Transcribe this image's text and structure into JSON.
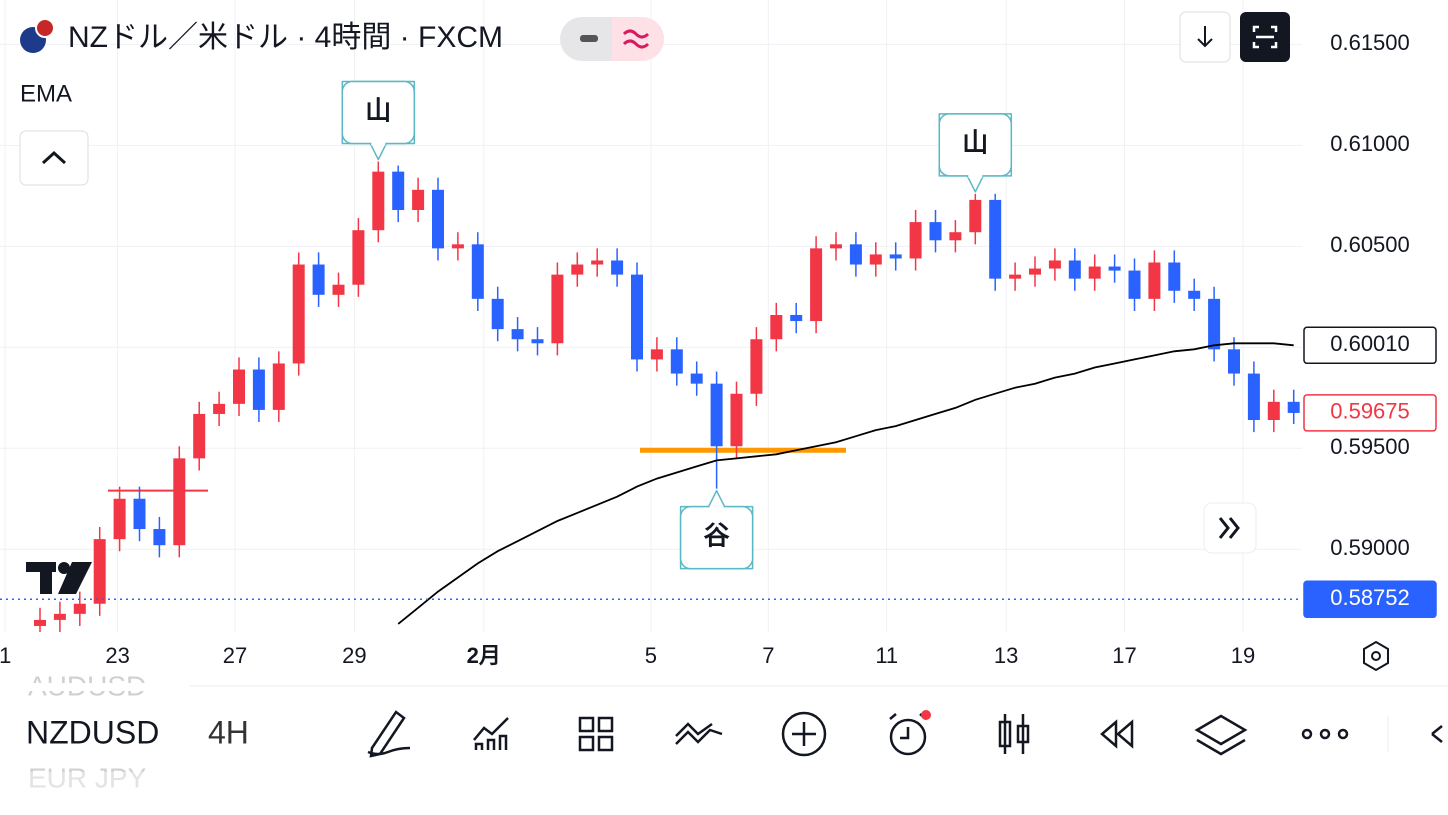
{
  "header": {
    "title": "NZドル／米ドル · 4時間 · FXCM",
    "indicator": "EMA"
  },
  "chart_data": {
    "type": "candlestick",
    "open": [
      0.5862,
      0.5865,
      0.5868,
      0.5873,
      0.5905,
      0.5925,
      0.591,
      0.5902,
      0.5945,
      0.5967,
      0.5972,
      0.5989,
      0.5969,
      0.5992,
      0.6041,
      0.6026,
      0.6031,
      0.6058,
      0.6087,
      0.6068,
      0.6078,
      0.6049,
      0.6051,
      0.6024,
      0.6009,
      0.6004,
      0.6002,
      0.6036,
      0.6041,
      0.6043,
      0.6036,
      0.5994,
      0.5999,
      0.5987,
      0.5982,
      0.5951,
      0.5977,
      0.6004,
      0.6016,
      0.6013,
      0.6049,
      0.6051,
      0.6041,
      0.6046,
      0.6044,
      0.6062,
      0.6053,
      0.6057,
      0.6073,
      0.6034,
      0.6036,
      0.6039,
      0.6043,
      0.6034,
      0.604,
      0.6038,
      0.6024,
      0.6042,
      0.6028,
      0.6024,
      0.5999,
      0.5987,
      0.5964,
      0.5973
    ],
    "high": [
      0.5871,
      0.5874,
      0.5879,
      0.5911,
      0.5931,
      0.5931,
      0.5916,
      0.5951,
      0.5973,
      0.5978,
      0.5995,
      0.5995,
      0.5998,
      0.6047,
      0.6047,
      0.6037,
      0.6064,
      0.6092,
      0.609,
      0.6084,
      0.6084,
      0.6057,
      0.6057,
      0.603,
      0.6015,
      0.601,
      0.6042,
      0.6047,
      0.6049,
      0.6049,
      0.6042,
      0.6005,
      0.6005,
      0.5993,
      0.5988,
      0.5983,
      0.601,
      0.6022,
      0.6022,
      0.6055,
      0.6057,
      0.6057,
      0.6052,
      0.6052,
      0.6068,
      0.6068,
      0.6063,
      0.6076,
      0.6076,
      0.6042,
      0.6045,
      0.6049,
      0.6049,
      0.6046,
      0.6046,
      0.6044,
      0.6048,
      0.6048,
      0.6034,
      0.603,
      0.6005,
      0.5993,
      0.5979,
      0.5979
    ],
    "low": [
      0.5856,
      0.5859,
      0.5862,
      0.5867,
      0.5899,
      0.5904,
      0.5896,
      0.5896,
      0.5939,
      0.5961,
      0.5966,
      0.5963,
      0.5963,
      0.5986,
      0.602,
      0.602,
      0.6025,
      0.6052,
      0.6062,
      0.6062,
      0.6043,
      0.6043,
      0.6018,
      0.6003,
      0.5998,
      0.5996,
      0.5996,
      0.603,
      0.6035,
      0.603,
      0.5988,
      0.5988,
      0.5981,
      0.5976,
      0.593,
      0.5945,
      0.5971,
      0.5998,
      0.6007,
      0.6007,
      0.6043,
      0.6035,
      0.6035,
      0.6038,
      0.6038,
      0.6047,
      0.6047,
      0.6051,
      0.6028,
      0.6028,
      0.603,
      0.6033,
      0.6028,
      0.6028,
      0.6032,
      0.6018,
      0.6018,
      0.6022,
      0.6018,
      0.5993,
      0.5981,
      0.5958,
      0.5958,
      0.5962
    ],
    "close": [
      0.5865,
      0.5868,
      0.5873,
      0.5905,
      0.5925,
      0.591,
      0.5902,
      0.5945,
      0.5967,
      0.5972,
      0.5989,
      0.5969,
      0.5992,
      0.6041,
      0.6026,
      0.6031,
      0.6058,
      0.6087,
      0.6068,
      0.6078,
      0.6049,
      0.6051,
      0.6024,
      0.6009,
      0.6004,
      0.6002,
      0.6036,
      0.6041,
      0.6043,
      0.6036,
      0.5994,
      0.5999,
      0.5987,
      0.5982,
      0.5951,
      0.5977,
      0.6004,
      0.6016,
      0.6013,
      0.6049,
      0.6051,
      0.6041,
      0.6046,
      0.6044,
      0.6062,
      0.6053,
      0.6057,
      0.6073,
      0.6034,
      0.6036,
      0.6039,
      0.6043,
      0.6034,
      0.604,
      0.6038,
      0.6024,
      0.6042,
      0.6028,
      0.6024,
      0.5999,
      0.5987,
      0.5964,
      0.5973,
      0.59675
    ],
    "ema": [
      null,
      null,
      null,
      null,
      null,
      null,
      null,
      null,
      null,
      null,
      null,
      null,
      null,
      null,
      null,
      null,
      null,
      null,
      0.5863,
      0.5871,
      0.5879,
      0.5886,
      0.5893,
      0.5899,
      0.5904,
      0.5909,
      0.5914,
      0.5918,
      0.5922,
      0.5926,
      0.5931,
      0.5935,
      0.5938,
      0.5941,
      0.5944,
      0.5945,
      0.5946,
      0.5947,
      0.5949,
      0.5951,
      0.5953,
      0.5956,
      0.5959,
      0.5961,
      0.5964,
      0.5967,
      0.597,
      0.5974,
      0.5977,
      0.598,
      0.5982,
      0.5985,
      0.5987,
      0.599,
      0.5992,
      0.5994,
      0.5996,
      0.5998,
      0.5999,
      0.6001,
      0.6002,
      0.6002,
      0.6002,
      0.6001
    ],
    "up_color": "#f23645",
    "down_color": "#2962ff",
    "ema_color": "#000000",
    "ylim": [
      0.586,
      0.6172
    ],
    "yticks": [
      {
        "value": 0.615,
        "label": "0.61500"
      },
      {
        "value": 0.61,
        "label": "0.61000"
      },
      {
        "value": 0.605,
        "label": "0.60500"
      },
      {
        "value": 0.6,
        "label": "0.60000"
      },
      {
        "value": 0.595,
        "label": "0.59500"
      },
      {
        "value": 0.59,
        "label": "0.59000"
      }
    ],
    "xticks": [
      {
        "value": -1.75,
        "label": "1"
      },
      {
        "value": 3.9,
        "label": "23"
      },
      {
        "value": 9.8,
        "label": "27"
      },
      {
        "value": 15.8,
        "label": "29"
      },
      {
        "value": 22.3,
        "label": "2月"
      },
      {
        "value": 30.7,
        "label": "5"
      },
      {
        "value": 36.6,
        "label": "7"
      },
      {
        "value": 42.55,
        "label": "11"
      },
      {
        "value": 48.55,
        "label": "13"
      },
      {
        "value": 54.5,
        "label": "17"
      },
      {
        "value": 60.45,
        "label": "19"
      }
    ],
    "price_labels": [
      {
        "value": 0.6001,
        "label": "0.60010"
      },
      {
        "value": 0.59675,
        "label": "0.59675"
      },
      {
        "value": 0.58752,
        "label": "0.58752"
      }
    ],
    "levels": [
      {
        "value": 0.5929,
        "color": "#f23645"
      },
      {
        "value": 0.5949,
        "color": "#ff9800"
      }
    ],
    "annotations": [
      "山",
      "山",
      "谷"
    ]
  },
  "toolbar": {
    "symbol": "NZDUSD",
    "timeframe": "4H",
    "prev_symbol": "AUDUSD",
    "next_symbol": "EUR JPY"
  }
}
